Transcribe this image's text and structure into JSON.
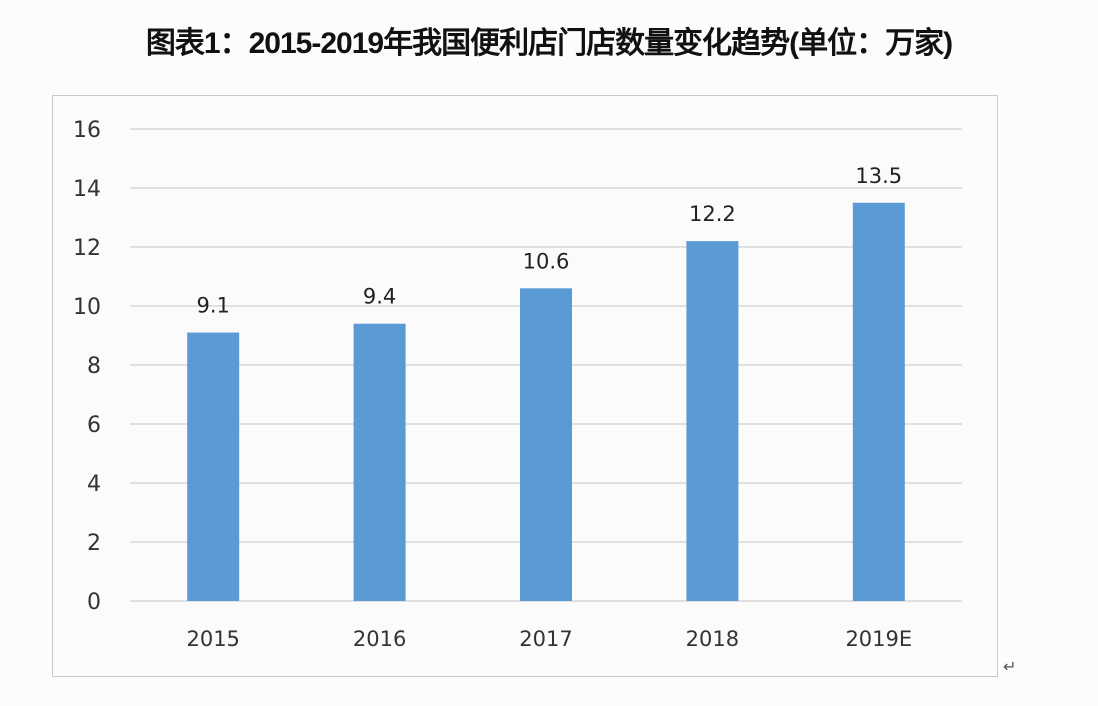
{
  "chart_data": {
    "type": "bar",
    "title": "图表1：2015-2019年我国便利店门店数量变化趋势(单位：万家)",
    "categories": [
      "2015",
      "2016",
      "2017",
      "2018",
      "2019E"
    ],
    "values": [
      9.1,
      9.4,
      10.6,
      12.2,
      13.5
    ],
    "data_labels": [
      "9.1",
      "9.4",
      "10.6",
      "12.2",
      "13.5"
    ],
    "xlabel": "",
    "ylabel": "",
    "ylim": [
      0,
      16
    ],
    "yticks": [
      0,
      2,
      4,
      6,
      8,
      10,
      12,
      14,
      16
    ],
    "grid": true,
    "legend": "none",
    "bar_color": "#5b9bd5"
  },
  "return_mark": "↵"
}
